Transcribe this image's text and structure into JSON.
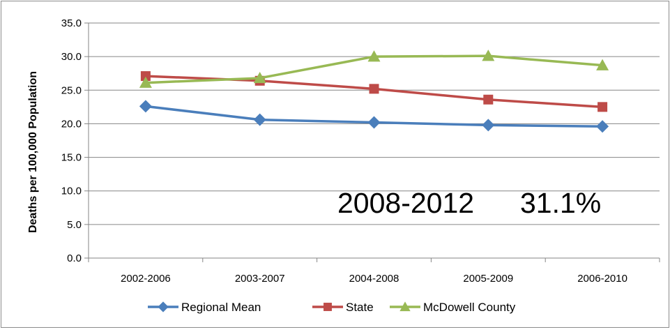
{
  "chart_data": {
    "type": "line",
    "title": "",
    "xlabel": "",
    "ylabel": "Deaths per 100,000 Population",
    "categories": [
      "2002-2006",
      "2003-2007",
      "2004-2008",
      "2005-2009",
      "2006-2010"
    ],
    "ylim": [
      0,
      35
    ],
    "yticks": [
      "0.0",
      "5.0",
      "10.0",
      "15.0",
      "20.0",
      "25.0",
      "30.0",
      "35.0"
    ],
    "grid": true,
    "legend_position": "bottom",
    "series": [
      {
        "name": "Regional Mean",
        "values": [
          22.6,
          20.6,
          20.2,
          19.8,
          19.6
        ],
        "color": "#4a7ebb",
        "marker": "diamond"
      },
      {
        "name": "State",
        "values": [
          27.1,
          26.4,
          25.2,
          23.6,
          22.5
        ],
        "color": "#be4b48",
        "marker": "square"
      },
      {
        "name": "McDowell County",
        "values": [
          26.1,
          26.8,
          30.0,
          30.1,
          28.7
        ],
        "color": "#98b954",
        "marker": "triangle"
      }
    ],
    "annotations": [
      {
        "text": "2008-2012"
      },
      {
        "text": "31.1%"
      }
    ]
  }
}
